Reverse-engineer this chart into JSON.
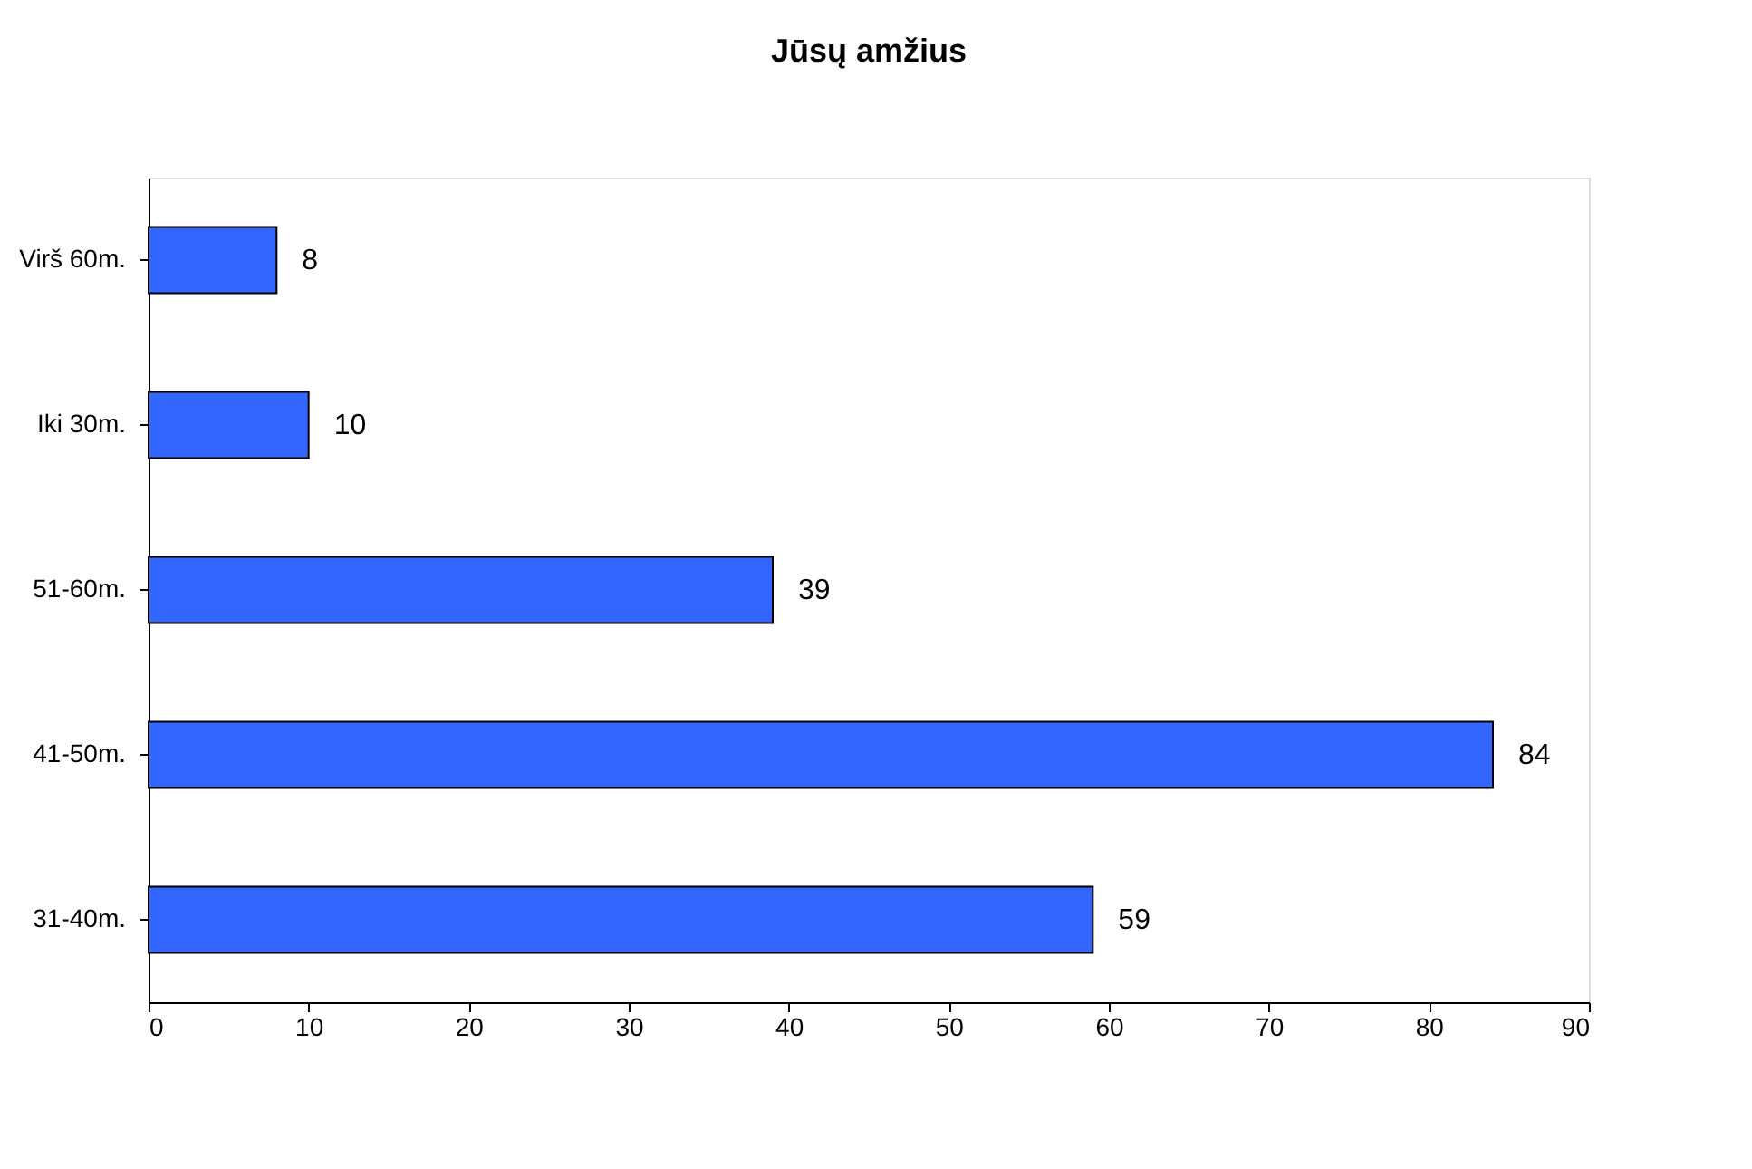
{
  "chart_data": {
    "type": "bar",
    "orientation": "horizontal",
    "title": "Jūsų amžius",
    "categories": [
      "Virš 60m.",
      "Iki 30m.",
      "51-60m.",
      "41-50m.",
      "31-40m."
    ],
    "values": [
      8,
      10,
      39,
      84,
      59
    ],
    "color": "#3366ff",
    "xlim": [
      0,
      90
    ],
    "xticks": [
      0,
      10,
      20,
      30,
      40,
      50,
      60,
      70,
      80,
      90
    ],
    "grid": false,
    "data_labels": true
  }
}
